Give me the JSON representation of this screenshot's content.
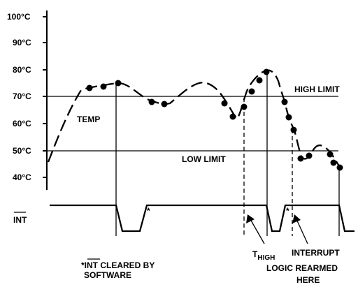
{
  "chart_data": {
    "type": "line",
    "y_unit": "°C",
    "y_ticks": [
      "100°C",
      "90°C",
      "80°C",
      "70°C",
      "60°C",
      "50°C",
      "40°C"
    ],
    "ylim": [
      40,
      100
    ],
    "limits": [
      {
        "name": "HIGH LIMIT",
        "value": 70
      },
      {
        "name": "LOW LIMIT",
        "value": 50
      }
    ],
    "series": [
      {
        "name": "TEMP",
        "style": "dashed",
        "sampled_points": [
          {
            "t": 0.09,
            "temp": 73.4
          },
          {
            "t": 0.13,
            "temp": 73.8
          },
          {
            "t": 0.21,
            "temp": 74.9
          },
          {
            "t": 0.3,
            "temp": 67.8
          },
          {
            "t": 0.34,
            "temp": 67.2
          },
          {
            "t": 0.6,
            "temp": 67.5
          },
          {
            "t": 0.63,
            "temp": 62.6
          },
          {
            "t": 0.68,
            "temp": 66.4
          },
          {
            "t": 0.71,
            "temp": 71.9
          },
          {
            "t": 0.75,
            "temp": 75.9
          },
          {
            "t": 0.79,
            "temp": 78.9
          },
          {
            "t": 0.85,
            "temp": 67.8
          },
          {
            "t": 0.87,
            "temp": 62.4
          },
          {
            "t": 0.88,
            "temp": 57.8
          },
          {
            "t": 0.91,
            "temp": 47.2
          },
          {
            "t": 0.93,
            "temp": 48.2
          },
          {
            "t": 0.98,
            "temp": 48.7
          },
          {
            "t": 1.0,
            "temp": 45.3
          },
          {
            "t": 1.02,
            "temp": 43.9
          }
        ]
      }
    ]
  },
  "signal": {
    "name": "INT"
  },
  "annotations": {
    "temp": "TEMP",
    "high_limit": "HIGH LIMIT",
    "low_limit": "LOW LIMIT",
    "asterisk": "*",
    "thigh_main": "T",
    "thigh_sub": "HIGH",
    "interrupt": "INTERRUPT",
    "logic_rearmed_line1": "LOGIC REARMED",
    "logic_rearmed_line2": "HERE",
    "cleared_prefix": "*",
    "cleared_int": "INT",
    "cleared_suffix": " CLEARED BY",
    "cleared_line2": "SOFTWARE"
  }
}
